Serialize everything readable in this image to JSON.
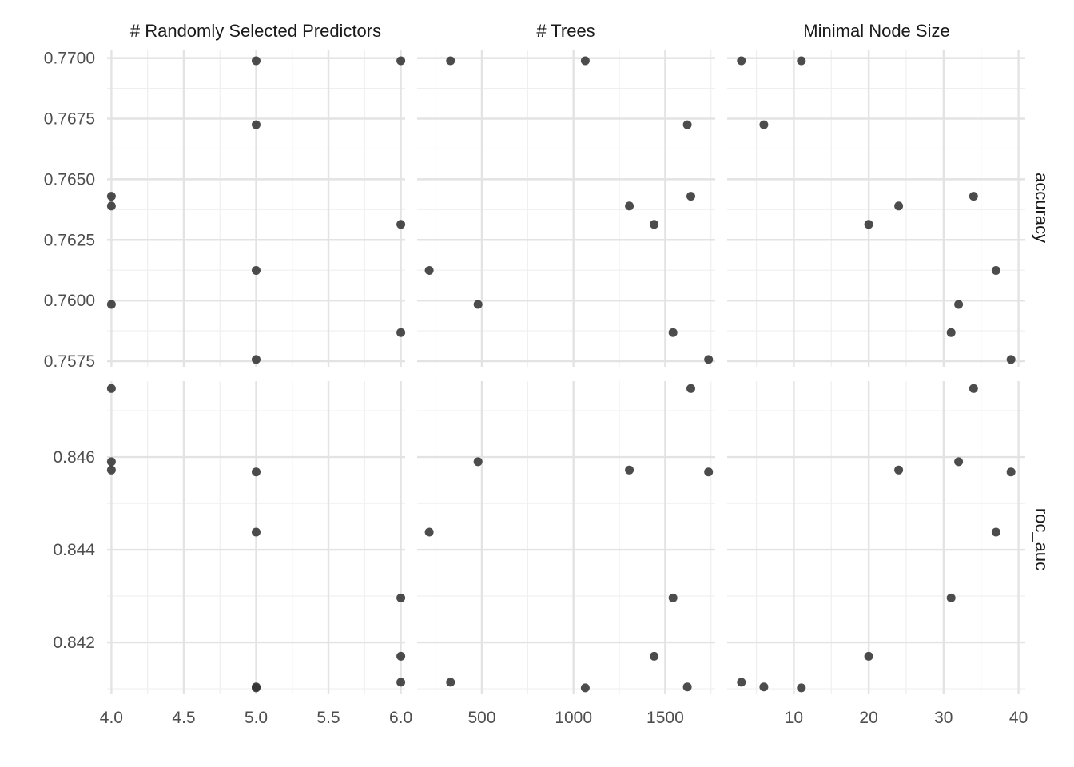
{
  "chart_data": {
    "type": "scatter",
    "point_color": "#333333",
    "grid_major_color": "#e3e3e3",
    "grid_minor_color": "#efefef",
    "columns": [
      {
        "label": "# Randomly Selected Predictors",
        "xlim": [
          3.97,
          6.03
        ],
        "xticks": [
          4.0,
          4.5,
          5.0,
          5.5,
          6.0
        ],
        "xtick_labels": [
          "4.0",
          "4.5",
          "5.0",
          "5.5",
          "6.0"
        ],
        "xminor": [
          4.25,
          4.75,
          5.25,
          5.75
        ]
      },
      {
        "label": "# Trees",
        "xlim": [
          147,
          1773
        ],
        "xticks": [
          500,
          1000,
          1500
        ],
        "xtick_labels": [
          "500",
          "1000",
          "1500"
        ],
        "xminor": [
          250,
          750,
          1250,
          1750
        ]
      },
      {
        "label": "Minimal Node Size",
        "xlim": [
          1.1,
          40.9
        ],
        "xticks": [
          10,
          20,
          30,
          40
        ],
        "xtick_labels": [
          "10",
          "20",
          "30",
          "40"
        ],
        "xminor": [
          5,
          15,
          25,
          35
        ]
      }
    ],
    "rows": [
      {
        "label": "accuracy",
        "ylim": [
          0.75727,
          0.77035
        ],
        "yticks": [
          0.7575,
          0.76,
          0.7625,
          0.765,
          0.7675,
          0.77
        ],
        "ytick_labels": [
          "0.7575",
          "0.7600",
          "0.7625",
          "0.7650",
          "0.7675",
          "0.7700"
        ],
        "yminor": [
          0.75875,
          0.76125,
          0.76375,
          0.76625,
          0.76875
        ]
      },
      {
        "label": "roc_auc",
        "ylim": [
          0.84088,
          0.84764
        ],
        "yticks": [
          0.842,
          0.844,
          0.846
        ],
        "ytick_labels": [
          "0.842",
          "0.844",
          "0.846"
        ],
        "yminor": [
          0.841,
          0.843,
          0.845,
          0.847
        ]
      }
    ],
    "configs": [
      {
        "mtry": 5,
        "trees": 1064,
        "min_n": 11,
        "accuracy": 0.76989,
        "roc_auc": 0.84102
      },
      {
        "mtry": 6,
        "trees": 329,
        "min_n": 3,
        "accuracy": 0.76989,
        "roc_auc": 0.84114
      },
      {
        "mtry": 5,
        "trees": 1621,
        "min_n": 6,
        "accuracy": 0.76725,
        "roc_auc": 0.84104
      },
      {
        "mtry": 4,
        "trees": 1640,
        "min_n": 34,
        "accuracy": 0.7643,
        "roc_auc": 0.84748
      },
      {
        "mtry": 4,
        "trees": 1305,
        "min_n": 24,
        "accuracy": 0.7639,
        "roc_auc": 0.84572
      },
      {
        "mtry": 6,
        "trees": 1440,
        "min_n": 20,
        "accuracy": 0.76314,
        "roc_auc": 0.8417
      },
      {
        "mtry": 5,
        "trees": 213,
        "min_n": 37,
        "accuracy": 0.76124,
        "roc_auc": 0.84438
      },
      {
        "mtry": 4,
        "trees": 479,
        "min_n": 32,
        "accuracy": 0.75984,
        "roc_auc": 0.8459
      },
      {
        "mtry": 6,
        "trees": 1543,
        "min_n": 31,
        "accuracy": 0.75868,
        "roc_auc": 0.84296
      },
      {
        "mtry": 5,
        "trees": 1737,
        "min_n": 39,
        "accuracy": 0.75757,
        "roc_auc": 0.84568
      }
    ]
  }
}
